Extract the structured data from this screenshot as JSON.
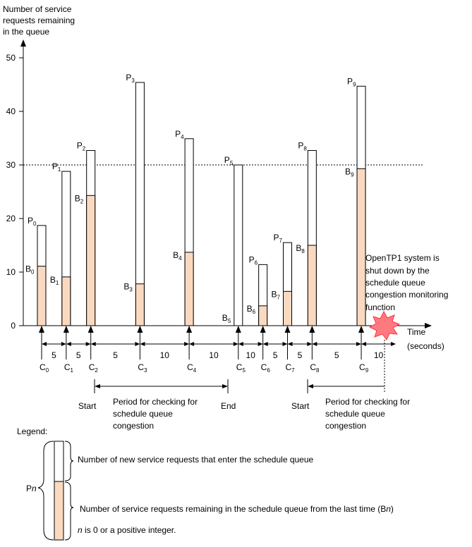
{
  "chart_data": {
    "type": "bar",
    "ylabel": [
      "Number of service",
      "requests remaining",
      "in the queue"
    ],
    "xlabel": [
      "Time",
      "(seconds)"
    ],
    "yticks": [
      0,
      10,
      20,
      30,
      40,
      50
    ],
    "threshold": 30,
    "ylim": [
      0,
      50
    ],
    "bars": [
      {
        "p": "P",
        "ps": "0",
        "b": "B",
        "bs": "0",
        "c": "C",
        "cs": "0",
        "time": 0,
        "total": 18.7,
        "remaining": 11.1
      },
      {
        "p": "P",
        "ps": "1",
        "b": "B",
        "bs": "1",
        "c": "C",
        "cs": "1",
        "time": 5,
        "total": 28.8,
        "remaining": 9.1
      },
      {
        "p": "P",
        "ps": "2",
        "b": "B",
        "bs": "2",
        "c": "C",
        "cs": "2",
        "time": 10,
        "total": 32.7,
        "remaining": 24.3
      },
      {
        "p": "P",
        "ps": "3",
        "b": "B",
        "bs": "3",
        "c": "C",
        "cs": "3",
        "time": 20,
        "total": 45.4,
        "remaining": 7.8
      },
      {
        "p": "P",
        "ps": "4",
        "b": "B",
        "bs": "4",
        "c": "C",
        "cs": "4",
        "time": 30,
        "total": 34.9,
        "remaining": 13.7
      },
      {
        "p": "P",
        "ps": "5",
        "b": "B",
        "bs": "5",
        "c": "C",
        "cs": "5",
        "time": 40,
        "total": 30.0,
        "remaining": 0
      },
      {
        "p": "P",
        "ps": "6",
        "b": "B",
        "bs": "6",
        "c": "C",
        "cs": "6",
        "time": 45,
        "total": 11.4,
        "remaining": 3.7
      },
      {
        "p": "P",
        "ps": "7",
        "b": "B",
        "bs": "7",
        "c": "C",
        "cs": "7",
        "time": 50,
        "total": 15.5,
        "remaining": 6.4
      },
      {
        "p": "P",
        "ps": "8",
        "b": "B",
        "bs": "8",
        "c": "C",
        "cs": "8",
        "time": 55,
        "total": 32.7,
        "remaining": 15.0
      },
      {
        "p": "P",
        "ps": "9",
        "b": "B",
        "bs": "9",
        "c": "C",
        "cs": "9",
        "time": 65,
        "total": 44.7,
        "remaining": 29.3
      }
    ],
    "intervals": [
      "5",
      "5",
      "5",
      "10",
      "10",
      "10",
      "5",
      "5",
      "5",
      "10"
    ],
    "period1": {
      "start": "Start",
      "end": "End",
      "label": [
        "Period for checking for",
        "schedule queue",
        "congestion"
      ]
    },
    "period2": {
      "start": "Start",
      "label": [
        "Period for checking for",
        "schedule queue",
        "congestion"
      ]
    },
    "shutdown_note": [
      "OpenTP1 system is",
      "shut down by the",
      "schedule queue",
      "congestion monitoring",
      "function"
    ],
    "colors": {
      "remaining_fill": "#fad9c1",
      "new_fill": "#ffffff",
      "burst": "#ff7a7e",
      "burst_stroke": "#ff3344"
    },
    "legend": {
      "title": "Legend:",
      "pn": "P",
      "pn_italic": "n",
      "new_desc": "Number of new service requests that enter the schedule queue",
      "remaining_desc_1": "Number of service requests remaining in the schedule queue from the last time (B",
      "remaining_desc_n": "n",
      "remaining_desc_2": ")",
      "n_italic": "n",
      "n_note": " is 0 or a positive integer."
    }
  }
}
